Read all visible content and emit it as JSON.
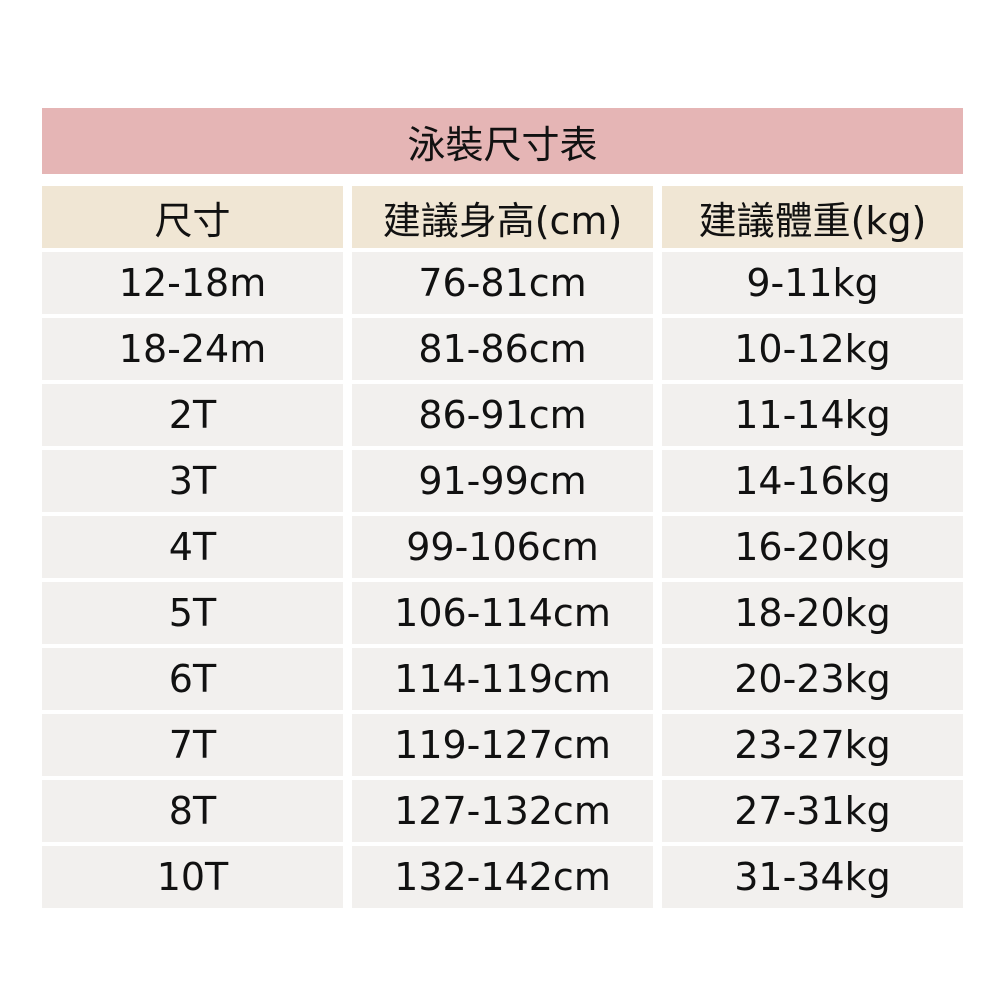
{
  "title": "泳裝尺寸表",
  "headers": [
    "尺寸",
    "建議身高(cm)",
    "建議體重(kg)"
  ],
  "rows": [
    [
      "12-18m",
      "76-81cm",
      "9-11kg"
    ],
    [
      "18-24m",
      "81-86cm",
      "10-12kg"
    ],
    [
      "2T",
      "86-91cm",
      "11-14kg"
    ],
    [
      "3T",
      "91-99cm",
      "14-16kg"
    ],
    [
      "4T",
      "99-106cm",
      "16-20kg"
    ],
    [
      "5T",
      "106-114cm",
      "18-20kg"
    ],
    [
      "6T",
      "114-119cm",
      "20-23kg"
    ],
    [
      "7T",
      "119-127cm",
      "23-27kg"
    ],
    [
      "8T",
      "127-132cm",
      "27-31kg"
    ],
    [
      "10T",
      "132-142cm",
      "31-34kg"
    ]
  ],
  "colors": {
    "title_bg": "#e5b5b5",
    "header_bg": "#f0e6d4",
    "cell_bg": "#f2f0ee"
  }
}
